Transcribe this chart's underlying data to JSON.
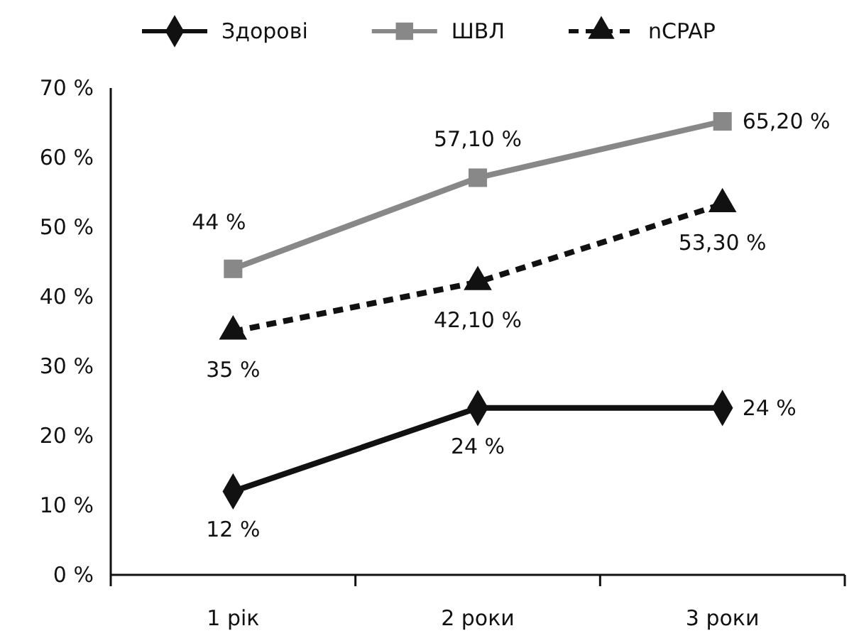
{
  "chart_data": {
    "type": "line",
    "categories": [
      "1 рік",
      "2 роки",
      "3 роки"
    ],
    "series": [
      {
        "name": "Здорові",
        "color": "#111111",
        "marker": "diamond",
        "line_style": "solid",
        "values": [
          12,
          24,
          24
        ],
        "value_labels": [
          "12 %",
          "24 %",
          "24 %"
        ]
      },
      {
        "name": "ШВЛ",
        "color": "#888888",
        "marker": "square",
        "line_style": "solid",
        "values": [
          44,
          57.1,
          65.2
        ],
        "value_labels": [
          "44 %",
          "57,10 %",
          "65,20 %"
        ]
      },
      {
        "name": "nCPAP",
        "color": "#111111",
        "marker": "triangle",
        "line_style": "dashed",
        "values": [
          35,
          42.1,
          53.3
        ],
        "value_labels": [
          "35 %",
          "42,10 %",
          "53,30 %"
        ]
      }
    ],
    "ylim": [
      0,
      70
    ],
    "yticks": [
      {
        "value": 0,
        "label": "0 %"
      },
      {
        "value": 10,
        "label": "10 %"
      },
      {
        "value": 20,
        "label": "20 %"
      },
      {
        "value": 30,
        "label": "30 %"
      },
      {
        "value": 40,
        "label": "40 %"
      },
      {
        "value": 50,
        "label": "50 %"
      },
      {
        "value": 60,
        "label": "60 %"
      },
      {
        "value": 70,
        "label": "70 %"
      }
    ],
    "grid": false,
    "legend": "top"
  }
}
